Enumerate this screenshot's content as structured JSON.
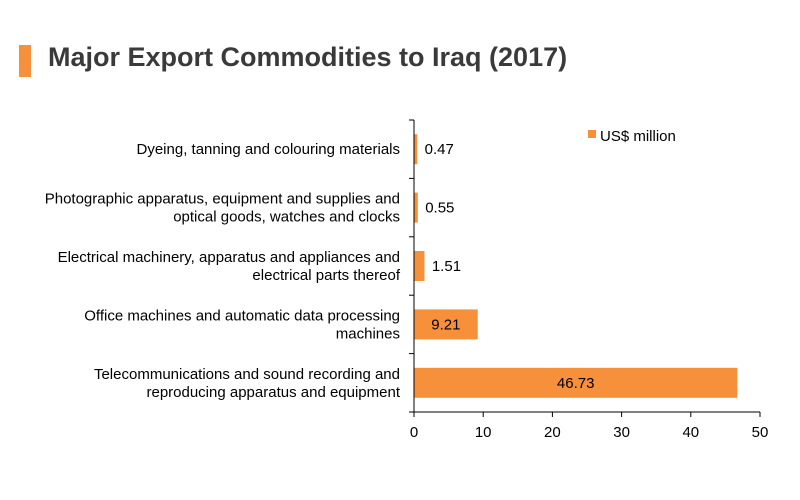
{
  "title": "Major Export Commodities to Iraq (2017)",
  "colors": {
    "accent": "#f7903a",
    "bar": "#f7903a"
  },
  "chart_data": {
    "type": "bar",
    "orientation": "horizontal",
    "categories": [
      [
        "Dyeing, tanning and colouring materials"
      ],
      [
        "Photographic apparatus, equipment and supplies and",
        "optical goods, watches and clocks"
      ],
      [
        "Electrical machinery, apparatus and appliances and",
        "electrical parts thereof"
      ],
      [
        "Office machines and automatic data processing",
        "machines"
      ],
      [
        "Telecommunications and sound recording and",
        "reproducing apparatus and equipment"
      ]
    ],
    "series": [
      {
        "name": "US$ million",
        "values": [
          0.47,
          0.55,
          1.51,
          9.21,
          46.73
        ]
      }
    ],
    "data_labels": [
      "0.47",
      "0.55",
      "1.51",
      "9.21",
      "46.73"
    ],
    "xlim": [
      0,
      50
    ],
    "xticks": [
      0,
      10,
      20,
      30,
      40,
      50
    ],
    "legend_position": "top-right",
    "grid": false
  }
}
